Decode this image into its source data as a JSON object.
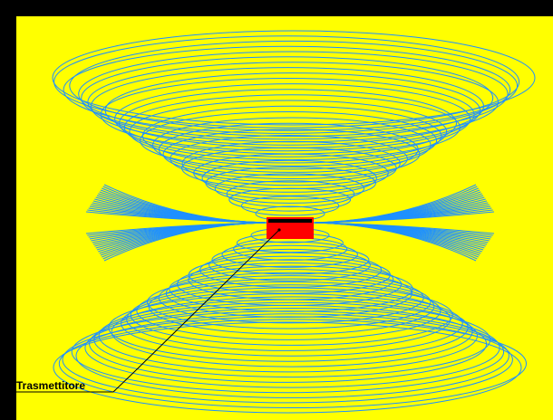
{
  "diagram": {
    "label": "Trasmettitore",
    "colors": {
      "background": "#ffff00",
      "frame": "#000000",
      "field_lines": "#1e90ff",
      "transmitter_body": "#ff0000",
      "transmitter_band": "#000000",
      "leader_line": "#000000",
      "label_text": "#000000"
    },
    "icons": {
      "transmitter": "transmitter-box-icon"
    }
  }
}
